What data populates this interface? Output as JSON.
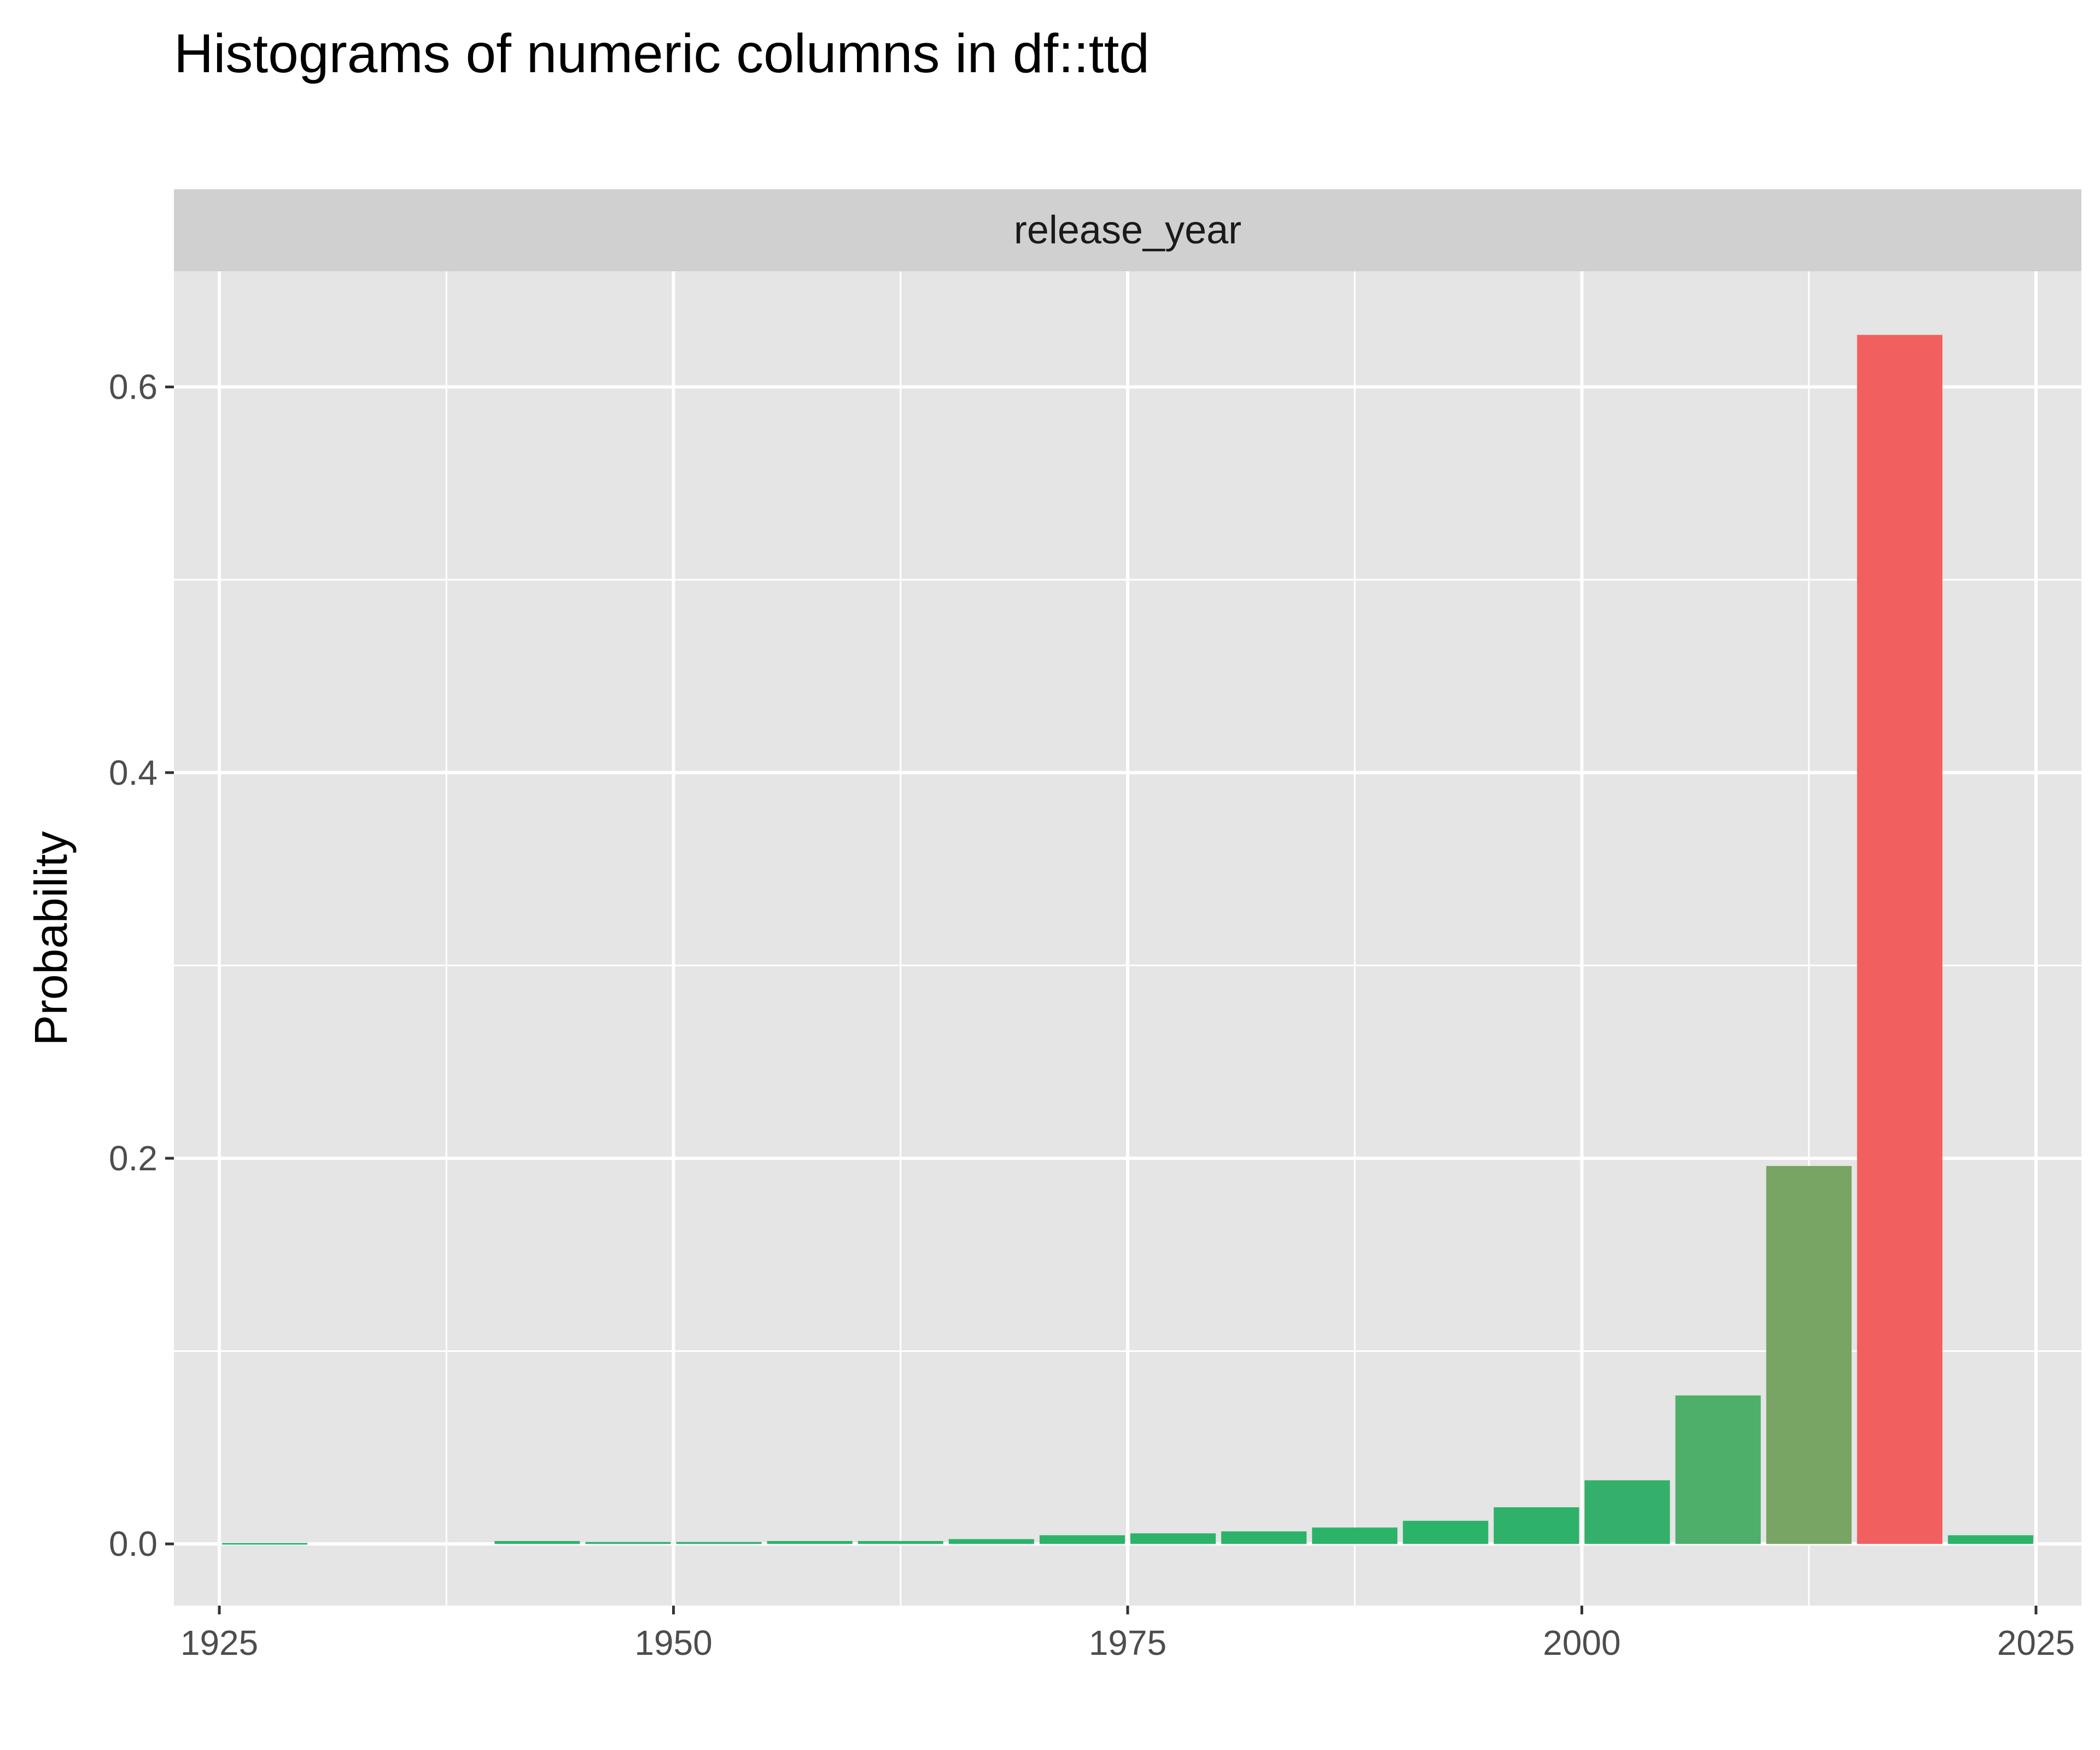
{
  "chart_data": {
    "type": "bar",
    "title": "Histograms of numeric columns in df::ttd",
    "facet_label": "release_year",
    "xlabel": "",
    "ylabel": "Probability",
    "xlim": [
      1922.5,
      2027.5
    ],
    "ylim": [
      -0.032,
      0.66
    ],
    "x_ticks": [
      1925,
      1950,
      1975,
      2000,
      2025
    ],
    "y_ticks": [
      0.0,
      0.2,
      0.4,
      0.6
    ],
    "y_tick_labels": [
      "0.0",
      "0.2",
      "0.4",
      "0.6"
    ],
    "bin_width": 5,
    "x": [
      1927.5,
      1932.5,
      1937.5,
      1942.5,
      1947.5,
      1952.5,
      1957.5,
      1962.5,
      1967.5,
      1972.5,
      1977.5,
      1982.5,
      1987.5,
      1992.5,
      1997.5,
      2002.5,
      2007.5,
      2012.5,
      2017.5,
      2022.5
    ],
    "values": [
      0.0005,
      0.0,
      0.0,
      0.0015,
      0.001,
      0.001,
      0.0015,
      0.0015,
      0.0025,
      0.0045,
      0.0055,
      0.0065,
      0.0085,
      0.012,
      0.019,
      0.033,
      0.077,
      0.196,
      0.627,
      0.0045
    ],
    "bar_colors": [
      "#2cb36a",
      "#2cb36a",
      "#2cb36a",
      "#2cb36a",
      "#2cb36a",
      "#2cb36a",
      "#2cb36a",
      "#2cb36a",
      "#2cb36a",
      "#2cb36a",
      "#2cb36a",
      "#2cb36a",
      "#2cb36a",
      "#2cb36a",
      "#2eb169",
      "#35b06a",
      "#4daf6a",
      "#78a464",
      "#f15f5f",
      "#2cb36a"
    ],
    "grid": true,
    "legend": "none",
    "panel_background": "#e5e5e5",
    "strip_background": "#d0d0d0"
  }
}
